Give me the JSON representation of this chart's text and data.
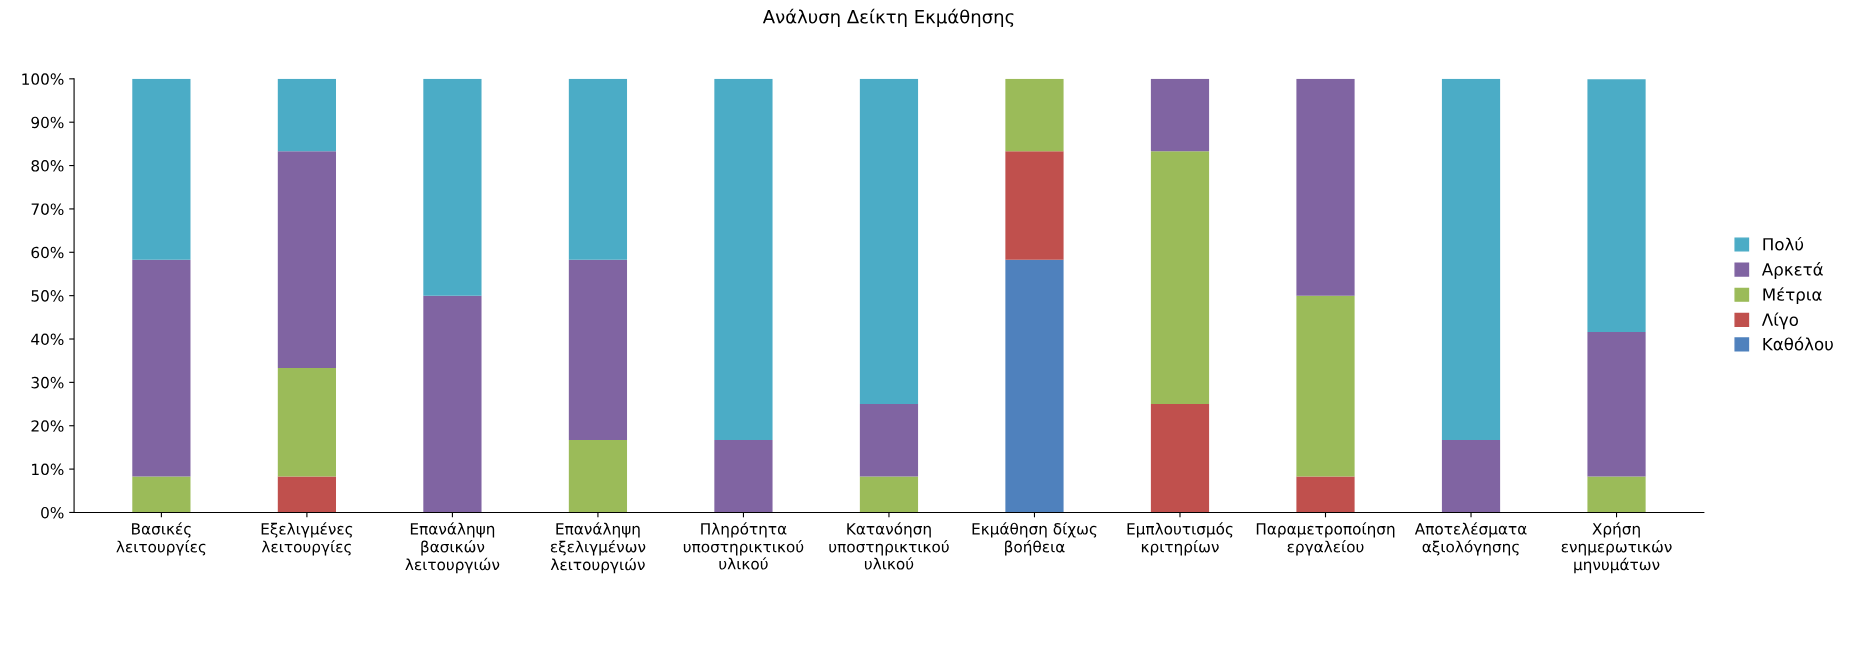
{
  "chart_data": {
    "type": "bar",
    "title": "Ανάλυση Δείκτη Εκμάθησης",
    "stacked": true,
    "categories": [
      "Βασικές\nλειτουργίες",
      "Εξελιγμένες\nλειτουργίες",
      "Επανάληψη\nβασικών\nλειτουργιών",
      "Επανάληψη\nεξελιγμένων\nλειτουργιών",
      "Πληρότητα\nυποστηρικτικού\nυλικού",
      "Κατανόηση\nυποστηρικτικού\nυλικού",
      "Εκμάθηση δίχως\nβοήθεια",
      "Εμπλουτισμός\nκριτηρίων",
      "Παραμετροποίηση\nεργαλείου",
      "Αποτελέσματα\nαξιολόγησης",
      "Χρήση\nενημερωτικών\nμηνυμάτων"
    ],
    "series": [
      {
        "name": "Καθόλου",
        "color": "#4f81bd",
        "values": [
          0,
          0,
          0,
          0,
          0,
          0,
          58.3,
          0,
          0,
          0,
          0
        ]
      },
      {
        "name": "Λίγο",
        "color": "#c0504d",
        "values": [
          0,
          8.3,
          0,
          0,
          0,
          0,
          25,
          25,
          8.3,
          0,
          0
        ]
      },
      {
        "name": "Μέτρια",
        "color": "#9bbb59",
        "values": [
          8.3,
          25,
          0,
          16.7,
          0,
          8.3,
          16.7,
          58.3,
          41.7,
          0,
          8.3
        ]
      },
      {
        "name": "Αρκετά",
        "color": "#8064a2",
        "values": [
          50,
          50,
          50,
          41.6,
          16.7,
          16.7,
          0,
          16.7,
          50,
          16.7,
          33.3
        ]
      },
      {
        "name": "Πολύ",
        "color": "#4bacc6",
        "values": [
          41.7,
          16.7,
          50,
          41.7,
          83.3,
          75,
          0,
          0,
          0,
          83.3,
          58.3
        ]
      }
    ],
    "ylim": [
      0,
      100
    ],
    "yticks": [
      {
        "value": 0,
        "label": "0%"
      },
      {
        "value": 10,
        "label": "10%"
      },
      {
        "value": 20,
        "label": "20%"
      },
      {
        "value": 30,
        "label": "30%"
      },
      {
        "value": 40,
        "label": "40%"
      },
      {
        "value": 50,
        "label": "50%"
      },
      {
        "value": 60,
        "label": "60%"
      },
      {
        "value": 70,
        "label": "70%"
      },
      {
        "value": 80,
        "label": "80%"
      },
      {
        "value": 90,
        "label": "90%"
      },
      {
        "value": 100,
        "label": "100%"
      }
    ],
    "grid": false,
    "legend": "right"
  }
}
